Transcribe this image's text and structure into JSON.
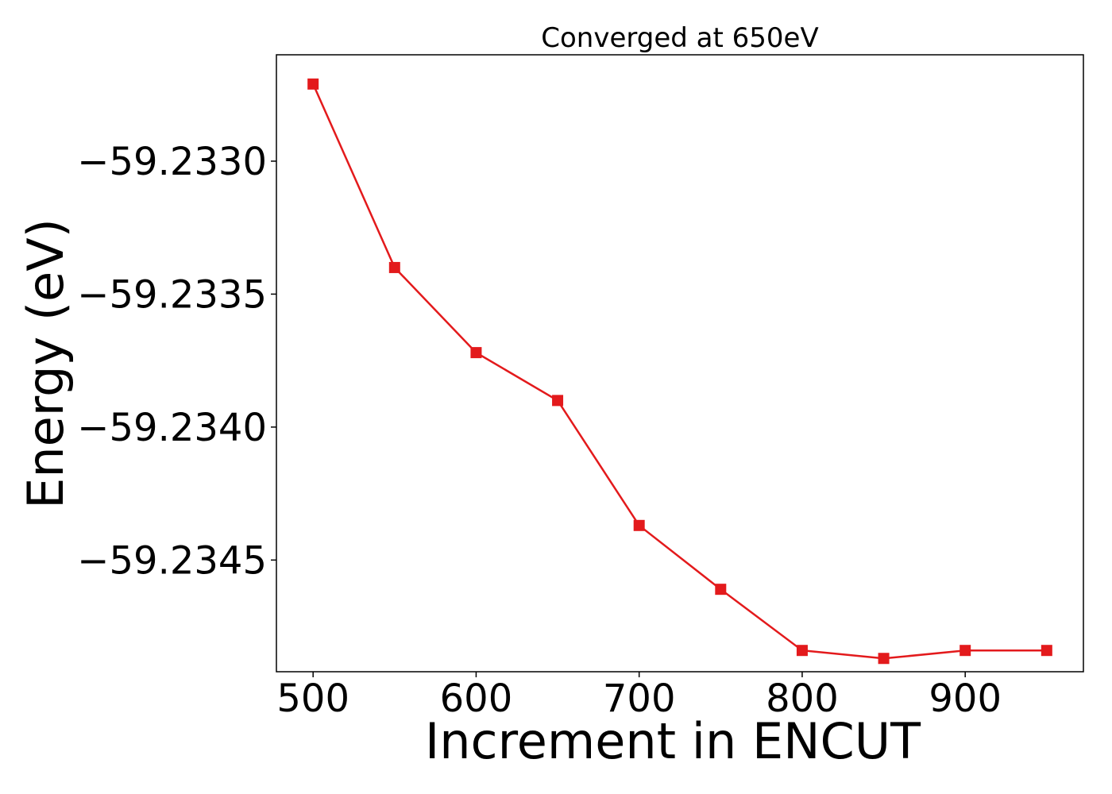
{
  "chart_data": {
    "type": "line",
    "title": "Converged at 650eV",
    "xlabel": "Increment in ENCUT",
    "ylabel": "Energy (eV)",
    "x": [
      500,
      550,
      600,
      650,
      700,
      750,
      800,
      850,
      900,
      950
    ],
    "series": [
      {
        "values": [
          -59.23271,
          -59.2334,
          -59.23372,
          -59.2339,
          -59.23437,
          -59.23461,
          -59.23484,
          -59.23487,
          -59.23484,
          -59.23484
        ],
        "color": "#e31a1c",
        "marker": "square"
      }
    ],
    "xlim": [
      477.5,
      972.5
    ],
    "ylim": [
      -59.23492,
      -59.2326
    ],
    "xticks": [
      500,
      600,
      700,
      800,
      900
    ],
    "xtick_labels": [
      "500",
      "600",
      "700",
      "800",
      "900"
    ],
    "yticks": [
      -59.233,
      -59.2335,
      -59.234,
      -59.2345
    ],
    "ytick_labels": [
      "−59.2330",
      "−59.2335",
      "−59.2340",
      "−59.2345"
    ],
    "grid": false,
    "legend": "none"
  }
}
